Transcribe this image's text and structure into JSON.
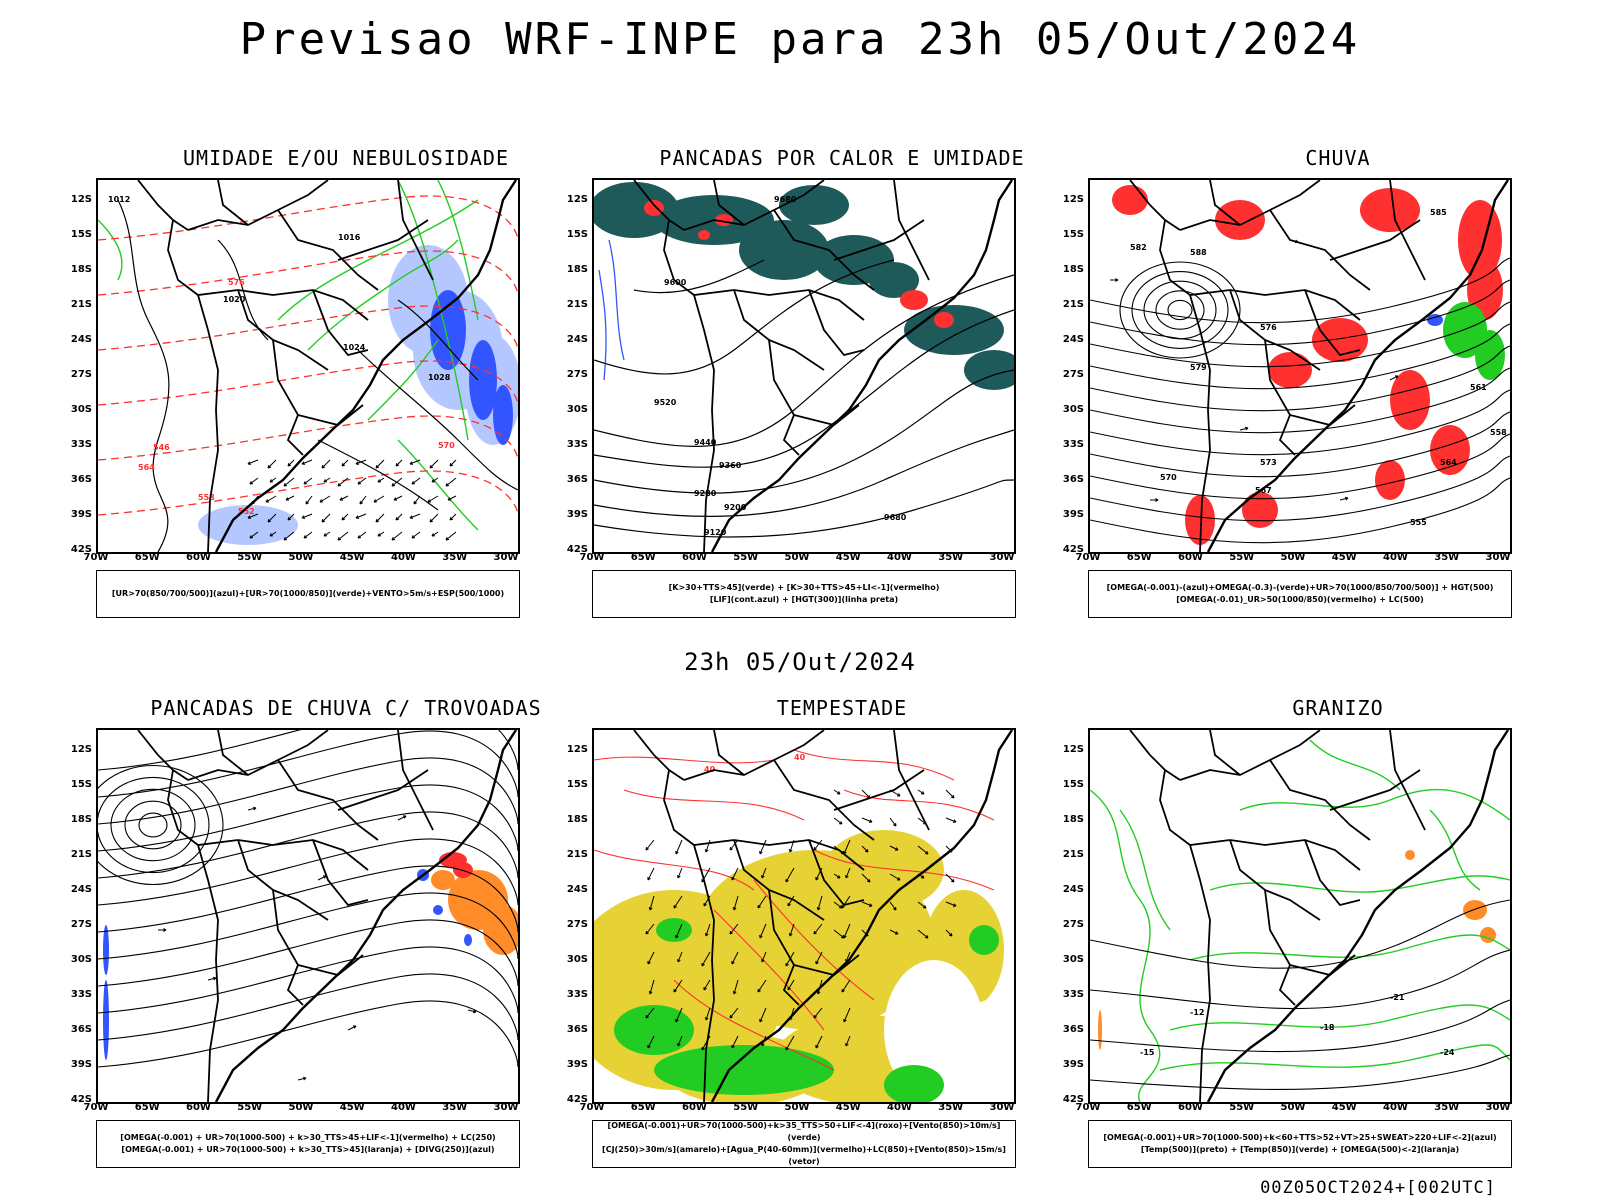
{
  "title": "Previsao WRF-INPE  para 23h 05/Out/2024",
  "mid_title": "23h 05/Out/2024",
  "footer": "00Z05OCT2024+[002UTC]",
  "lat_labels": [
    "12S",
    "15S",
    "18S",
    "21S",
    "24S",
    "27S",
    "30S",
    "33S",
    "36S",
    "39S",
    "42S"
  ],
  "lon_labels": [
    "70W",
    "65W",
    "60W",
    "55W",
    "50W",
    "45W",
    "40W",
    "35W",
    "30W"
  ],
  "panels": [
    {
      "title": "UMIDADE E/OU NEBULOSIDADE",
      "legend": [
        "[UR>70(850/700/500)](azul)+[UR>70(1000/850)](verde)+VENTO>5m/s+ESP(500/1000)"
      ],
      "contour_labels": [
        "1012",
        "1016",
        "1020",
        "1024",
        "1028",
        "570",
        "576",
        "564",
        "558",
        "552",
        "546"
      ]
    },
    {
      "title": "PANCADAS POR CALOR E UMIDADE",
      "legend": [
        "[K>30+TTS>45](verde) + [K>30+TTS>45+LI<-1](vermelho)",
        "[LIF](cont.azul) + [HGT(300)](linha preta)"
      ],
      "contour_labels": [
        "9680",
        "9600",
        "9520",
        "9440",
        "9360",
        "9280",
        "9200",
        "9120"
      ]
    },
    {
      "title": "CHUVA",
      "legend": [
        "[OMEGA(-0.001)-(azul)+OMEGA(-0.3)-(verde)+UR>70(1000/850/700/500)] + HGT(500)",
        "[OMEGA(-0.01)_UR>50(1000/850)(vermelho) + LC(500)"
      ],
      "contour_labels": [
        "588",
        "585",
        "582",
        "579",
        "576",
        "573",
        "570",
        "567",
        "564",
        "561",
        "558",
        "555"
      ]
    },
    {
      "title": "PANCADAS DE CHUVA C/ TROVOADAS",
      "legend": [
        "[OMEGA(-0.001) + UR>70(1000-500) + k>30_TTS>45+LIF<-1](vermelho) + LC(250)",
        "[OMEGA(-0.001) + UR>70(1000-500) + k>30_TTS>45](laranja) + [DIVG(250)](azul)"
      ],
      "contour_labels": []
    },
    {
      "title": "TEMPESTADE",
      "legend": [
        "[OMEGA(-0.001)+UR>70(1000-500)+k>35_TTS>50+LIF<-4](roxo)+[Vento(850)>10m/s](verde)",
        "[CJ(250)>30m/s](amarelo)+[Agua_P(40-60mm)](vermelho)+LC(850)+[Vento(850)>15m/s](vetor)"
      ],
      "contour_labels": [
        "40"
      ]
    },
    {
      "title": "GRANIZO",
      "legend": [
        "[OMEGA(-0.001)+UR>70(1000-500)+k<60+TTS>52+VT>25+SWEAT>220+LIF<-2](azul)",
        "[Temp(500)](preto) + [Temp(850)](verde) + [OMEGA(500)<-2](laranja)"
      ],
      "contour_labels": [
        "-12",
        "-15",
        "-18",
        "-21",
        "-24"
      ]
    }
  ],
  "colors": {
    "black": "#000000",
    "red": "#ff3030",
    "green": "#22cc22",
    "blue": "#3355ff",
    "lightblue": "#b4c8ff",
    "teal": "#1f5a5a",
    "yellow": "#e6d235",
    "orange": "#ff8c28"
  }
}
